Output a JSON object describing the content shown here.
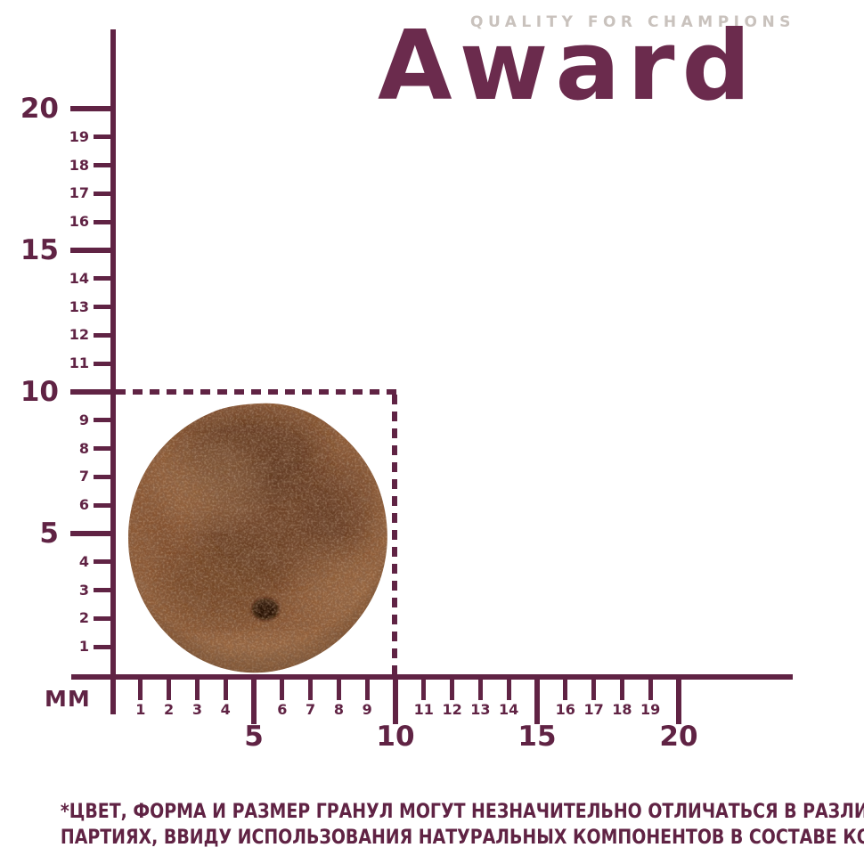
{
  "brand": {
    "tagline": "QUALITY FOR CHAMPIONS",
    "name": "Award"
  },
  "ruler": {
    "unit_label": "MM",
    "tick_values": [
      1,
      2,
      3,
      4,
      5,
      6,
      7,
      8,
      9,
      10,
      11,
      12,
      13,
      14,
      15,
      16,
      17,
      18,
      19,
      20
    ],
    "major_values": [
      5,
      10,
      15,
      20
    ],
    "minor_label_values": [
      1,
      2,
      3,
      4,
      6,
      7,
      8,
      9,
      11,
      12,
      13,
      14,
      16,
      17,
      18,
      19
    ]
  },
  "guide": {
    "width_mm": 10,
    "height_mm": 10
  },
  "footnote": {
    "line1": "*ЦВЕТ, ФОРМА И РАЗМЕР ГРАНУЛ МОГУТ НЕЗНАЧИТЕЛЬНО ОТЛИЧАТЬСЯ В РАЗЛИЧНЫХ",
    "line2": "ПАРТИЯХ, ВВИДУ ИСПОЛЬЗОВАНИЯ НАТУРАЛЬНЫХ КОМПОНЕНТОВ В СОСТАВЕ КОРМА"
  },
  "colors": {
    "maroon": "#602344",
    "brand": "#6b2b4d",
    "tagline_gray": "#c9c2bd",
    "kibble_base": "#8a5636"
  }
}
